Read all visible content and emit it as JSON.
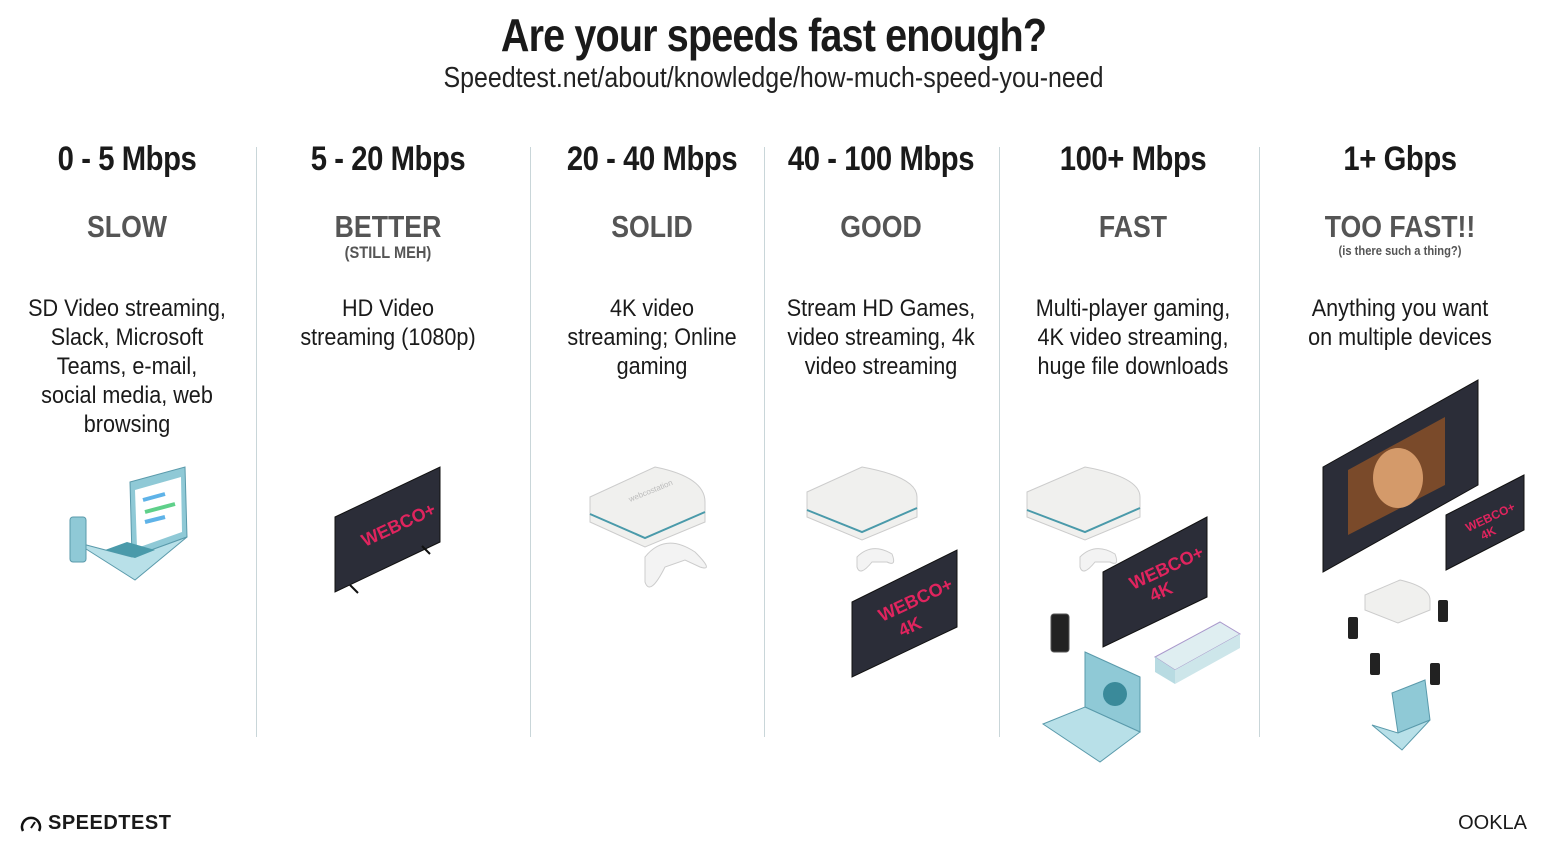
{
  "header": {
    "title": "Are your speeds fast enough?",
    "subtitle": "Speedtest.net/about/knowledge/how-much-speed-you-need"
  },
  "tiers": [
    {
      "range": "0 - 5 Mbps",
      "label": "SLOW",
      "sublabel": "",
      "description": "SD Video streaming, Slack, Microsoft Teams, e-mail, social media, web browsing",
      "devices": [
        "laptop-icon",
        "phone-icon"
      ]
    },
    {
      "range": "5 - 20 Mbps",
      "label": "BETTER",
      "sublabel": "(STILL MEH)",
      "description": "HD Video streaming (1080p)",
      "devices": [
        "tv-icon"
      ]
    },
    {
      "range": "20 - 40 Mbps",
      "label": "SOLID",
      "sublabel": "",
      "description": "4K video streaming; Online gaming",
      "devices": [
        "game-console-icon",
        "controller-icon"
      ]
    },
    {
      "range": "40 - 100 Mbps",
      "label": "GOOD",
      "sublabel": "",
      "description": "Stream HD Games, video streaming, 4k video streaming",
      "devices": [
        "game-console-icon",
        "controller-icon",
        "tv-4k-icon"
      ]
    },
    {
      "range": "100+ Mbps",
      "label": "FAST",
      "sublabel": "",
      "description": "Multi-player gaming, 4K video streaming, huge file downloads",
      "devices": [
        "game-console-icon",
        "controller-icon",
        "tv-4k-icon",
        "phone-icon",
        "laptop-icon"
      ]
    },
    {
      "range": "1+ Gbps",
      "label": "TOO FAST!!",
      "sublabel": "(is there such a thing?)",
      "description": "Anything you want on multiple devices",
      "devices": [
        "tv-icon",
        "tv-4k-icon",
        "game-console-icon",
        "phone-icon",
        "laptop-icon"
      ]
    }
  ],
  "tv": {
    "brand": "WEBCO+",
    "badge": "4K"
  },
  "console_brand": "webcostation",
  "footer": {
    "left_logo": "SPEEDTEST",
    "right_logo": "OOKLA"
  },
  "colors": {
    "text": "#1a1a1a",
    "label": "#555555",
    "accent_pink": "#e0245e",
    "device_blue": "#8fc9d6",
    "separator": "#c9d6d9"
  }
}
